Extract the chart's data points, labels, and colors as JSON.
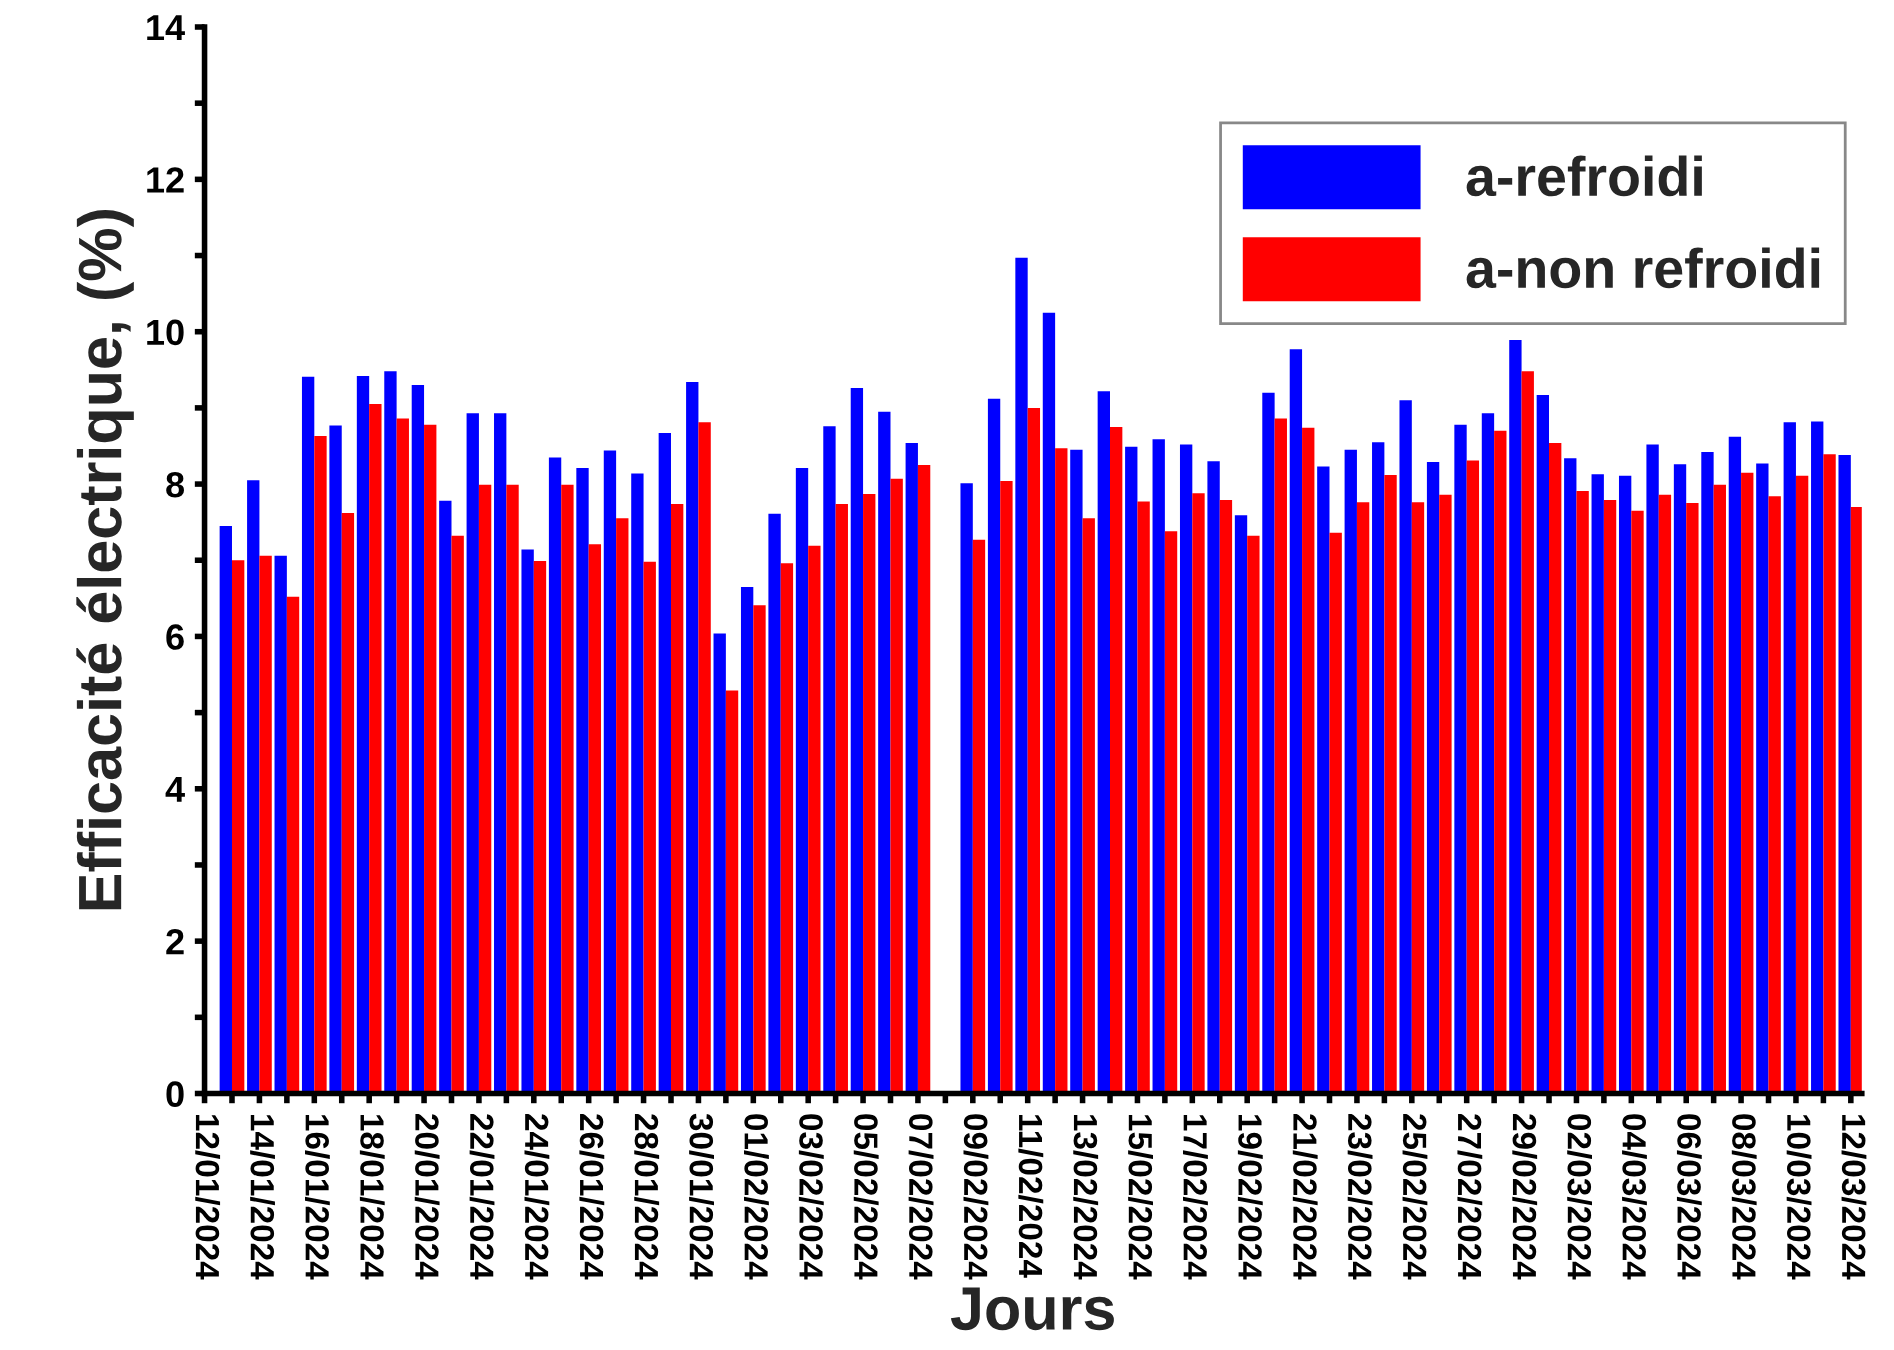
{
  "chart_data": {
    "type": "bar",
    "xlabel": "Jours",
    "ylabel": "Efficacité électrique, (%)",
    "categories": [
      "12/01/2024",
      null,
      "14/01/2024",
      null,
      "16/01/2024",
      null,
      "18/01/2024",
      null,
      "20/01/2024",
      null,
      "22/01/2024",
      null,
      "24/01/2024",
      null,
      "26/01/2024",
      null,
      "28/01/2024",
      null,
      "30/01/2024",
      null,
      "01/02/2024",
      null,
      "03/02/2024",
      null,
      "05/02/2024",
      null,
      "07/02/2024",
      null,
      "09/02/2024",
      null,
      "11/02/2024",
      null,
      "13/02/2024",
      null,
      "15/02/2024",
      null,
      "17/02/2024",
      null,
      "19/02/2024",
      null,
      "21/02/2024",
      null,
      "23/02/2024",
      null,
      "25/02/2024",
      null,
      "27/02/2024",
      null,
      "29/02/2024",
      null,
      "02/03/2024",
      null,
      "04/03/2024",
      null,
      "06/03/2024",
      null,
      "08/03/2024",
      null,
      "10/03/2024",
      null,
      "12/03/2024"
    ],
    "series": [
      {
        "name": "a-refroidi",
        "color": "#0000ff",
        "values": [
          null,
          7.45,
          8.05,
          7.06,
          9.41,
          8.77,
          9.42,
          9.48,
          9.3,
          7.78,
          8.93,
          8.93,
          7.14,
          8.35,
          8.21,
          8.44,
          8.14,
          8.67,
          9.34,
          6.04,
          6.65,
          7.61,
          8.21,
          8.76,
          9.26,
          8.95,
          8.54,
          null,
          8.01,
          9.12,
          10.97,
          10.25,
          8.45,
          9.22,
          8.49,
          8.59,
          8.52,
          8.3,
          7.59,
          9.2,
          9.77,
          8.23,
          8.45,
          8.55,
          9.1,
          8.29,
          8.78,
          8.93,
          9.89,
          9.17,
          8.34,
          8.13,
          8.11,
          8.52,
          8.26,
          8.42,
          8.62,
          8.27,
          8.81,
          8.82,
          8.38
        ]
      },
      {
        "name": "a-non refroidi",
        "color": "#ff0000",
        "values": [
          null,
          7.0,
          7.06,
          6.52,
          8.63,
          7.62,
          9.05,
          8.86,
          8.78,
          7.32,
          7.99,
          7.99,
          6.99,
          7.99,
          7.21,
          7.55,
          6.98,
          7.74,
          8.81,
          5.29,
          6.41,
          6.96,
          7.19,
          7.74,
          7.87,
          8.07,
          8.25,
          null,
          7.27,
          8.04,
          9.0,
          8.47,
          7.55,
          8.75,
          7.77,
          7.38,
          7.88,
          7.79,
          7.32,
          8.86,
          8.74,
          7.36,
          7.76,
          8.12,
          7.76,
          7.86,
          8.31,
          8.7,
          9.48,
          8.54,
          7.91,
          7.79,
          7.65,
          7.86,
          7.75,
          7.99,
          8.15,
          7.84,
          8.11,
          8.39,
          7.7
        ]
      }
    ],
    "ylim": [
      0,
      14
    ],
    "yticks": [
      0,
      {
        "value": 1,
        "label": null
      },
      2,
      {
        "value": 3,
        "label": null
      },
      4,
      {
        "value": 5,
        "label": null
      },
      6,
      {
        "value": 7,
        "label": null
      },
      8,
      {
        "value": 9,
        "label": null
      },
      10,
      {
        "value": 11,
        "label": null
      },
      12,
      {
        "value": 13,
        "label": null
      },
      14
    ],
    "grid": false,
    "legend": "top right"
  }
}
